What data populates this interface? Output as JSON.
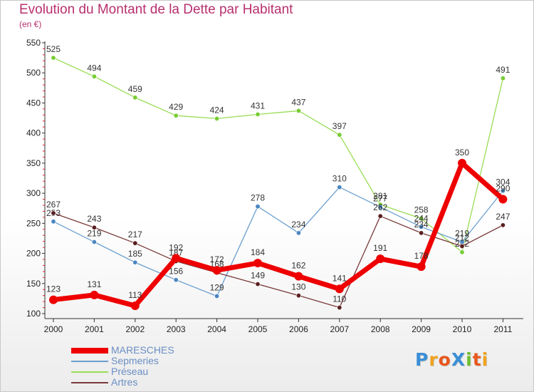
{
  "title": "Evolution du Montant de la Dette par Habitant",
  "unit": "(en €)",
  "brand": {
    "text": "ProXiti",
    "letters": [
      {
        "ch": "P",
        "color": "#3a8fd6"
      },
      {
        "ch": "r",
        "color": "#f0a21e"
      },
      {
        "ch": "o",
        "color": "#e8571d"
      },
      {
        "ch": "X",
        "color": "#3a8fd6"
      },
      {
        "ch": "i",
        "color": "#6cbf2d"
      },
      {
        "ch": "t",
        "color": "#e8571d"
      },
      {
        "ch": "i",
        "color": "#f0a21e"
      }
    ]
  },
  "chart_data": {
    "type": "line",
    "title": "Evolution du Montant de la Dette par Habitant",
    "ylabel": "(en €)",
    "categories": [
      "2000",
      "2001",
      "2002",
      "2003",
      "2004",
      "2005",
      "2006",
      "2007",
      "2008",
      "2009",
      "2010",
      "2011"
    ],
    "ylim": [
      100,
      550
    ],
    "yticks": [
      100,
      150,
      200,
      250,
      300,
      350,
      400,
      450,
      500,
      550
    ],
    "grid": false,
    "legend_position": "bottom-left",
    "series": [
      {
        "name": "Préseau",
        "color": "#99dd55",
        "marker": "#77cc33",
        "width": 1.3,
        "values": [
          525,
          494,
          459,
          429,
          424,
          431,
          437,
          397,
          281,
          258,
          202,
          491
        ],
        "labels": [
          "525",
          "494",
          "459",
          "429",
          "424",
          "431",
          "437",
          "397",
          "281",
          "258",
          "202",
          "491"
        ]
      },
      {
        "name": "Sepmeries",
        "color": "#6b9fcf",
        "marker": "#4a86c0",
        "width": 1.3,
        "values": [
          253,
          219,
          185,
          156,
          129,
          278,
          234,
          310,
          277,
          244,
          219,
          304
        ],
        "labels": [
          "253",
          "219",
          "185",
          "156",
          "129",
          "278",
          "234",
          "310",
          "277",
          "244",
          "219",
          "304"
        ]
      },
      {
        "name": "Artres",
        "color": "#7a3a3a",
        "marker": "#5a1f1f",
        "width": 1.3,
        "values": [
          267,
          243,
          217,
          187,
          168,
          149,
          130,
          110,
          262,
          234,
          212,
          247
        ],
        "labels": [
          "267",
          "243",
          "217",
          "187",
          "168",
          "149",
          "130",
          "110",
          "262",
          "234",
          "212",
          "247"
        ]
      },
      {
        "name": "MARESCHES",
        "color": "#ee0000",
        "marker": "#ee0000",
        "width": 7,
        "values": [
          123,
          131,
          113,
          192,
          172,
          184,
          162,
          141,
          191,
          178,
          350,
          290
        ],
        "labels": [
          "123",
          "131",
          "113",
          "192",
          "172",
          "184",
          "162",
          "141",
          "191",
          "178",
          "350",
          "290"
        ]
      }
    ],
    "legend_order": [
      "MARESCHES",
      "Sepmeries",
      "Préseau",
      "Artres"
    ]
  }
}
